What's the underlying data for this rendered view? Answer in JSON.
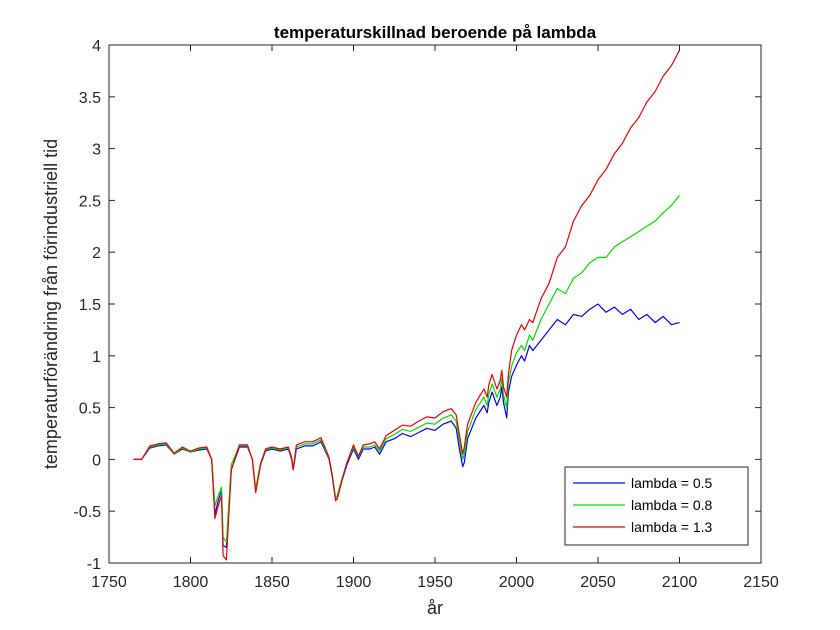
{
  "chart_data": {
    "type": "line",
    "title": "temperaturskillnad beroende på lambda",
    "xlabel": "år",
    "ylabel": "temperaturförändring från förindustriell tid",
    "xlim": [
      1750,
      2150
    ],
    "ylim": [
      -1,
      4
    ],
    "xticks": [
      1750,
      1800,
      1850,
      1900,
      1950,
      2000,
      2050,
      2100,
      2150
    ],
    "yticks": [
      -1,
      -0.5,
      0,
      0.5,
      1,
      1.5,
      2,
      2.5,
      3,
      3.5,
      4
    ],
    "xtick_labels": [
      "1750",
      "1800",
      "1850",
      "1900",
      "1950",
      "2000",
      "2050",
      "2100",
      "2150"
    ],
    "ytick_labels": [
      "-1",
      "-0.5",
      "0",
      "0.5",
      "1",
      "1.5",
      "2",
      "2.5",
      "3",
      "3.5",
      "4"
    ],
    "grid": false,
    "legend_position": "bottom-right",
    "series": [
      {
        "name": "lambda = 0.5",
        "color": "#0000ff",
        "x": [
          1765,
          1770,
          1775,
          1780,
          1785,
          1790,
          1795,
          1800,
          1805,
          1810,
          1813,
          1815,
          1817,
          1819,
          1820,
          1822,
          1825,
          1830,
          1835,
          1838,
          1840,
          1843,
          1846,
          1850,
          1855,
          1860,
          1862,
          1863,
          1865,
          1870,
          1875,
          1880,
          1885,
          1887,
          1889,
          1890,
          1893,
          1896,
          1900,
          1903,
          1906,
          1910,
          1913,
          1916,
          1920,
          1925,
          1930,
          1935,
          1940,
          1945,
          1950,
          1955,
          1960,
          1963,
          1965,
          1967,
          1968,
          1970,
          1975,
          1980,
          1982,
          1983,
          1985,
          1988,
          1990,
          1991,
          1992,
          1994,
          1995,
          1997,
          2000,
          2003,
          2005,
          2008,
          2010,
          2015,
          2020,
          2025,
          2030,
          2035,
          2040,
          2045,
          2050,
          2055,
          2060,
          2065,
          2070,
          2075,
          2080,
          2085,
          2090,
          2095,
          2100
        ],
        "y": [
          0.0,
          0.0,
          0.11,
          0.13,
          0.14,
          0.05,
          0.1,
          0.07,
          0.09,
          0.1,
          0.0,
          -0.53,
          -0.4,
          -0.3,
          -0.83,
          -0.85,
          -0.1,
          0.12,
          0.12,
          0.0,
          -0.3,
          -0.05,
          0.08,
          0.1,
          0.08,
          0.1,
          0.0,
          -0.1,
          0.1,
          0.13,
          0.13,
          0.17,
          0.0,
          -0.17,
          -0.39,
          -0.38,
          -0.2,
          -0.05,
          0.1,
          0.0,
          0.1,
          0.1,
          0.12,
          0.05,
          0.17,
          0.2,
          0.25,
          0.22,
          0.26,
          0.3,
          0.28,
          0.34,
          0.37,
          0.3,
          0.1,
          -0.07,
          -0.03,
          0.2,
          0.4,
          0.52,
          0.45,
          0.55,
          0.65,
          0.52,
          0.6,
          0.7,
          0.55,
          0.4,
          0.65,
          0.8,
          0.91,
          1.0,
          0.95,
          1.1,
          1.05,
          1.15,
          1.25,
          1.35,
          1.3,
          1.4,
          1.38,
          1.45,
          1.5,
          1.42,
          1.47,
          1.4,
          1.45,
          1.35,
          1.4,
          1.32,
          1.38,
          1.3,
          1.32
        ]
      },
      {
        "name": "lambda = 0.8",
        "color": "#00dd00",
        "x": [
          1765,
          1770,
          1775,
          1780,
          1785,
          1790,
          1795,
          1800,
          1805,
          1810,
          1813,
          1815,
          1817,
          1819,
          1820,
          1822,
          1825,
          1830,
          1835,
          1838,
          1840,
          1843,
          1846,
          1850,
          1855,
          1860,
          1862,
          1863,
          1865,
          1870,
          1875,
          1880,
          1885,
          1887,
          1889,
          1890,
          1893,
          1896,
          1900,
          1903,
          1906,
          1910,
          1913,
          1916,
          1920,
          1925,
          1930,
          1935,
          1940,
          1945,
          1950,
          1955,
          1960,
          1963,
          1965,
          1967,
          1968,
          1970,
          1975,
          1980,
          1982,
          1983,
          1985,
          1988,
          1990,
          1991,
          1992,
          1994,
          1995,
          1997,
          2000,
          2003,
          2005,
          2008,
          2010,
          2015,
          2020,
          2025,
          2030,
          2035,
          2040,
          2045,
          2050,
          2055,
          2060,
          2065,
          2070,
          2075,
          2080,
          2085,
          2090,
          2095,
          2100
        ],
        "y": [
          0.0,
          0.0,
          0.12,
          0.14,
          0.15,
          0.05,
          0.11,
          0.07,
          0.1,
          0.11,
          0.0,
          -0.45,
          -0.35,
          -0.27,
          -0.75,
          -0.8,
          -0.05,
          0.13,
          0.13,
          0.0,
          -0.28,
          -0.03,
          0.09,
          0.11,
          0.09,
          0.11,
          0.01,
          -0.08,
          0.12,
          0.15,
          0.15,
          0.19,
          0.01,
          -0.15,
          -0.37,
          -0.35,
          -0.18,
          -0.03,
          0.12,
          0.02,
          0.12,
          0.12,
          0.14,
          0.08,
          0.2,
          0.24,
          0.29,
          0.27,
          0.31,
          0.35,
          0.34,
          0.4,
          0.43,
          0.37,
          0.17,
          0.0,
          0.05,
          0.27,
          0.48,
          0.6,
          0.52,
          0.63,
          0.73,
          0.6,
          0.68,
          0.78,
          0.62,
          0.5,
          0.74,
          0.9,
          1.03,
          1.1,
          1.05,
          1.2,
          1.15,
          1.35,
          1.5,
          1.65,
          1.6,
          1.75,
          1.8,
          1.9,
          1.95,
          1.95,
          2.05,
          2.1,
          2.15,
          2.2,
          2.25,
          2.3,
          2.38,
          2.45,
          2.55
        ]
      },
      {
        "name": "lambda = 1.3",
        "color": "#ee0000",
        "x": [
          1765,
          1770,
          1775,
          1780,
          1785,
          1790,
          1795,
          1800,
          1805,
          1810,
          1813,
          1815,
          1817,
          1819,
          1820,
          1822,
          1825,
          1830,
          1835,
          1838,
          1840,
          1843,
          1846,
          1850,
          1855,
          1860,
          1862,
          1863,
          1865,
          1870,
          1875,
          1880,
          1885,
          1887,
          1889,
          1890,
          1893,
          1896,
          1900,
          1903,
          1906,
          1910,
          1913,
          1916,
          1920,
          1925,
          1930,
          1935,
          1940,
          1945,
          1950,
          1955,
          1960,
          1963,
          1965,
          1967,
          1968,
          1970,
          1975,
          1980,
          1982,
          1983,
          1985,
          1988,
          1990,
          1991,
          1992,
          1994,
          1995,
          1997,
          2000,
          2003,
          2005,
          2008,
          2010,
          2015,
          2020,
          2025,
          2030,
          2035,
          2040,
          2045,
          2050,
          2055,
          2060,
          2065,
          2070,
          2075,
          2080,
          2085,
          2090,
          2095,
          2100
        ],
        "y": [
          0.0,
          0.0,
          0.13,
          0.15,
          0.16,
          0.06,
          0.12,
          0.08,
          0.11,
          0.12,
          0.0,
          -0.57,
          -0.45,
          -0.35,
          -0.93,
          -0.97,
          -0.1,
          0.14,
          0.14,
          0.0,
          -0.32,
          -0.05,
          0.1,
          0.12,
          0.1,
          0.12,
          0.02,
          -0.1,
          0.14,
          0.17,
          0.17,
          0.21,
          0.02,
          -0.16,
          -0.4,
          -0.38,
          -0.2,
          -0.03,
          0.14,
          0.03,
          0.14,
          0.15,
          0.17,
          0.1,
          0.23,
          0.28,
          0.33,
          0.32,
          0.37,
          0.41,
          0.4,
          0.46,
          0.49,
          0.43,
          0.24,
          0.05,
          0.12,
          0.34,
          0.55,
          0.68,
          0.6,
          0.72,
          0.82,
          0.68,
          0.76,
          0.86,
          0.7,
          0.6,
          0.82,
          1.05,
          1.2,
          1.3,
          1.25,
          1.35,
          1.32,
          1.55,
          1.7,
          1.95,
          2.05,
          2.3,
          2.45,
          2.55,
          2.7,
          2.8,
          2.95,
          3.05,
          3.2,
          3.3,
          3.45,
          3.55,
          3.7,
          3.8,
          3.95
        ]
      }
    ]
  }
}
